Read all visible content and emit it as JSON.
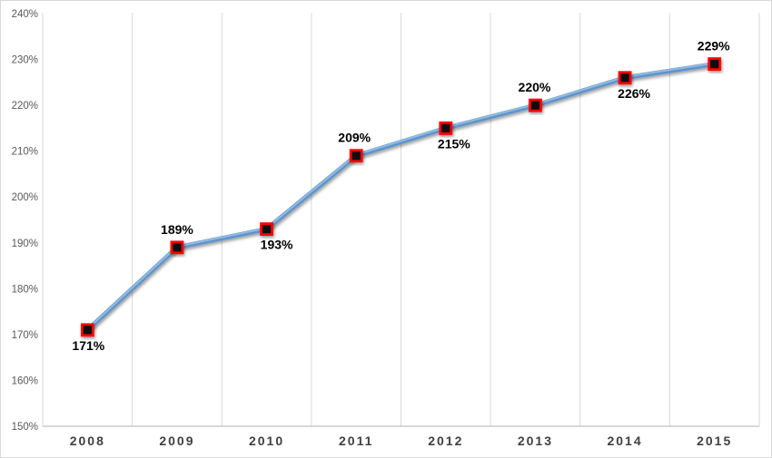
{
  "chart_data": {
    "type": "line",
    "title": "",
    "xlabel": "",
    "ylabel": "",
    "categories": [
      "2008",
      "2009",
      "2010",
      "2011",
      "2012",
      "2013",
      "2014",
      "2015"
    ],
    "values": [
      171,
      189,
      193,
      209,
      215,
      220,
      226,
      229
    ],
    "data_labels": [
      "171%",
      "189%",
      "193%",
      "209%",
      "215%",
      "220%",
      "226%",
      "229%"
    ],
    "label_positions": [
      "below",
      "above",
      "below",
      "above",
      "below",
      "above",
      "below",
      "above"
    ],
    "y_tick_labels": [
      "240%",
      "230%",
      "220%",
      "210%",
      "200%",
      "190%",
      "180%",
      "170%",
      "160%",
      "150%"
    ],
    "ylim": [
      150,
      240
    ],
    "y_tick_step": 10,
    "grid": "vertical-only",
    "legend": "none",
    "colors": {
      "line": "#5E94CB",
      "line_highlight": "#92BBE1",
      "marker_fill": "#0E0E0E",
      "marker_border": "#FF0000",
      "data_label": "#000000",
      "y_tick": "#595959",
      "x_tick": "#404040",
      "gridline": "#D9D9D9",
      "axis_line": "#BFBFBF",
      "background": "#FFFFFF",
      "frame_border": "#D9D9D9"
    }
  },
  "layout_hints": {
    "label_dx": [
      1,
      0,
      11,
      -2,
      9,
      -1,
      10,
      -1
    ],
    "label_dy_above": -15,
    "label_dy_below": 22
  }
}
